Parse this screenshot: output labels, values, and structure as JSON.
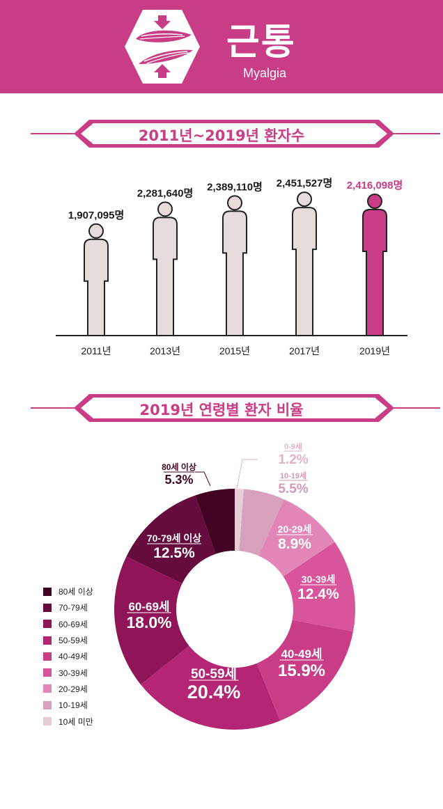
{
  "header": {
    "title": "근통",
    "subtitle": "Myalgia",
    "bg_color": "#c93c86",
    "icon": "muscle-icon"
  },
  "section1": {
    "title": "2011년~2019년 환자수"
  },
  "section2": {
    "title": "2019년 연령별 환자 비율"
  },
  "chart_data": [
    {
      "type": "bar",
      "categories": [
        "2011년",
        "2013년",
        "2015년",
        "2017년",
        "2019년"
      ],
      "values": [
        1907095,
        2281640,
        2389110,
        2451527,
        2416098
      ],
      "value_labels": [
        "1,907,095명",
        "2,281,640명",
        "2,389,110명",
        "2,451,527명",
        "2,416,098명"
      ],
      "highlight_color": "#c93c86",
      "base_color": "#e5dcdb"
    },
    {
      "type": "pie",
      "slices": [
        {
          "label": "0-9세",
          "value": 1.2,
          "value_label": "1.2%",
          "color": "#e6ced7"
        },
        {
          "label": "10-19세",
          "value": 5.5,
          "value_label": "5.5%",
          "color": "#d7a1bd"
        },
        {
          "label": "20-29세",
          "value": 8.9,
          "value_label": "8.9%",
          "color": "#e186b7"
        },
        {
          "label": "30-39세",
          "value": 12.4,
          "value_label": "12.4%",
          "color": "#d9559b"
        },
        {
          "label": "40-49세",
          "value": 15.9,
          "value_label": "15.9%",
          "color": "#c93c86"
        },
        {
          "label": "50-59세",
          "value": 20.4,
          "value_label": "20.4%",
          "color": "#b42574"
        },
        {
          "label": "60-69세",
          "value": 18.0,
          "value_label": "18.0%",
          "color": "#8f1458"
        },
        {
          "label": "70-79세 이상",
          "value": 12.5,
          "value_label": "12.5%",
          "color": "#650b3d"
        },
        {
          "label": "80세 이상",
          "value": 5.3,
          "value_label": "5.3%",
          "color": "#430322"
        }
      ],
      "legend": [
        "80세 이상",
        "70-79세",
        "60-69세",
        "50-59세",
        "40-49세",
        "30-39세",
        "20-29세",
        "10-19세",
        "10세 미만"
      ],
      "legend_colors": [
        "#430322",
        "#650b3d",
        "#8f1458",
        "#b42574",
        "#c93c86",
        "#d9559b",
        "#e186b7",
        "#d7a1bd",
        "#e6ced7"
      ],
      "legend_placement": "left"
    }
  ]
}
